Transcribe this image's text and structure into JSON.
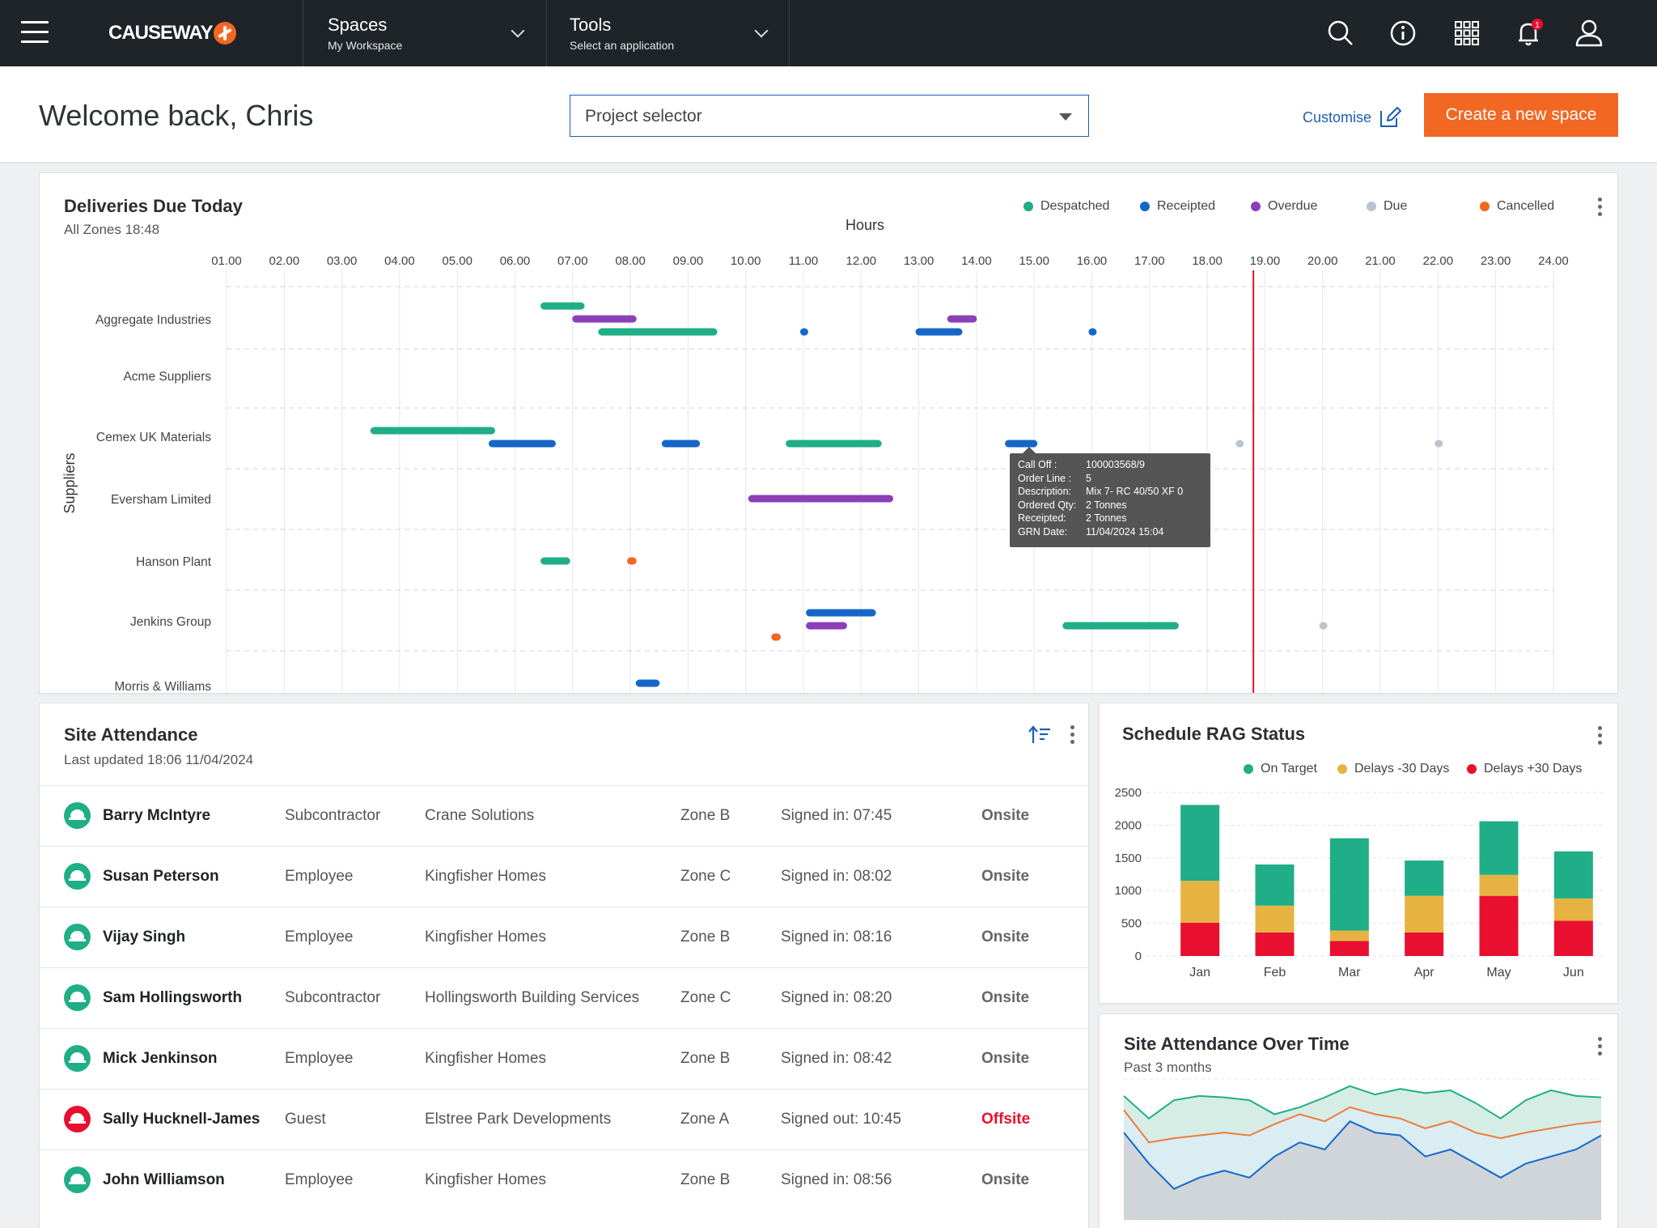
{
  "topbar": {
    "logo": "CAUSEWAY",
    "spaces": {
      "title": "Spaces",
      "subtitle": "My Workspace"
    },
    "tools": {
      "title": "Tools",
      "subtitle": "Select an application"
    },
    "notification_count": "1"
  },
  "header": {
    "welcome": "Welcome back, Chris",
    "project_selector": "Project selector",
    "customise": "Customise",
    "create_button": "Create a new space"
  },
  "deliveries": {
    "title": "Deliveries Due Today",
    "subtitle": "All Zones  18:48",
    "legend": [
      {
        "label": "Despatched",
        "color": "#1fae87"
      },
      {
        "label": "Receipted",
        "color": "#1467c8"
      },
      {
        "label": "Overdue",
        "color": "#8b3fb8"
      },
      {
        "label": "Due",
        "color": "#b9c4cf"
      },
      {
        "label": "Cancelled",
        "color": "#f26722"
      }
    ],
    "tooltip": [
      {
        "k": "Call Off :",
        "v": "100003568/9"
      },
      {
        "k": "Order Line :",
        "v": "5"
      },
      {
        "k": "Description:",
        "v": "Mix 7- RC 40/50 XF 0"
      },
      {
        "k": "Ordered Qty:",
        "v": "2 Tonnes"
      },
      {
        "k": "Receipted:",
        "v": "2 Tonnes"
      },
      {
        "k": "GRN Date:",
        "v": "11/04/2024  15:04"
      }
    ]
  },
  "chart_data": [
    {
      "type": "gantt",
      "xlabel": "Hours",
      "ylabel": "Suppliers",
      "x_ticks": [
        "01.00",
        "02.00",
        "03.00",
        "04.00",
        "05.00",
        "06.00",
        "07.00",
        "08.00",
        "09.00",
        "10.00",
        "11.00",
        "12.00",
        "13.00",
        "14.00",
        "15.00",
        "16.00",
        "17.00",
        "18.00",
        "19.00",
        "20.00",
        "21.00",
        "22.00",
        "23.00",
        "24.00"
      ],
      "current_time": 18.8,
      "rows": [
        "Aggregate Industries",
        "Acme Suppliers",
        "Cemex UK Materials",
        "Eversham Limited",
        "Hanson Plant",
        "Jenkins Group",
        "Morris & Williams"
      ],
      "bars": [
        {
          "row": 0,
          "sub": 0,
          "start": 6.45,
          "end": 7.2,
          "status": "Despatched"
        },
        {
          "row": 0,
          "sub": 1,
          "start": 7.0,
          "end": 8.1,
          "status": "Overdue"
        },
        {
          "row": 0,
          "sub": 2,
          "start": 7.45,
          "end": 9.5,
          "status": "Despatched"
        },
        {
          "row": 0,
          "sub": 2,
          "start": 10.95,
          "end": 11.05,
          "status": "Receipted"
        },
        {
          "row": 0,
          "sub": 2,
          "start": 12.95,
          "end": 13.75,
          "status": "Receipted"
        },
        {
          "row": 0,
          "sub": 1,
          "start": 13.5,
          "end": 14.0,
          "status": "Overdue"
        },
        {
          "row": 0,
          "sub": 2,
          "start": 15.95,
          "end": 16.05,
          "status": "Receipted"
        },
        {
          "row": 2,
          "sub": 0,
          "start": 3.5,
          "end": 5.65,
          "status": "Despatched"
        },
        {
          "row": 2,
          "sub": 1,
          "start": 5.55,
          "end": 6.7,
          "status": "Receipted"
        },
        {
          "row": 2,
          "sub": 1,
          "start": 8.55,
          "end": 9.2,
          "status": "Receipted"
        },
        {
          "row": 2,
          "sub": 1,
          "start": 10.7,
          "end": 12.35,
          "status": "Despatched"
        },
        {
          "row": 2,
          "sub": 1,
          "start": 14.5,
          "end": 15.05,
          "status": "Receipted"
        },
        {
          "row": 2,
          "sub": 1,
          "start": 18.5,
          "end": 18.6,
          "status": "Due"
        },
        {
          "row": 2,
          "sub": 1,
          "start": 21.95,
          "end": 22.05,
          "status": "Due"
        },
        {
          "row": 3,
          "sub": 1,
          "start": 10.05,
          "end": 12.55,
          "status": "Overdue"
        },
        {
          "row": 4,
          "sub": 1,
          "start": 6.45,
          "end": 6.95,
          "status": "Despatched"
        },
        {
          "row": 4,
          "sub": 1,
          "start": 7.95,
          "end": 8.1,
          "status": "Cancelled"
        },
        {
          "row": 5,
          "sub": 0,
          "start": 11.05,
          "end": 12.25,
          "status": "Receipted"
        },
        {
          "row": 5,
          "sub": 1,
          "start": 11.05,
          "end": 11.75,
          "status": "Overdue"
        },
        {
          "row": 5,
          "sub": 2,
          "start": 10.45,
          "end": 10.6,
          "status": "Cancelled"
        },
        {
          "row": 5,
          "sub": 1,
          "start": 15.5,
          "end": 17.5,
          "status": "Despatched"
        },
        {
          "row": 5,
          "sub": 1,
          "start": 19.95,
          "end": 20.05,
          "status": "Due"
        },
        {
          "row": 6,
          "sub": 0,
          "start": 8.1,
          "end": 8.5,
          "status": "Receipted"
        }
      ]
    },
    {
      "type": "bar",
      "stacked": true,
      "title": "Schedule RAG Status",
      "categories": [
        "Jan",
        "Feb",
        "Mar",
        "Apr",
        "May",
        "Jun"
      ],
      "ylim": [
        0,
        2500
      ],
      "y_ticks": [
        "0",
        "500",
        "1000",
        "1500",
        "2000",
        "2500"
      ],
      "legend_position": "top",
      "series": [
        {
          "name": "Delays +30 Days",
          "color": "#e8102e",
          "values": [
            510,
            360,
            230,
            360,
            920,
            540
          ]
        },
        {
          "name": "Delays -30 Days",
          "color": "#e6b342",
          "values": [
            640,
            410,
            160,
            560,
            320,
            340
          ]
        },
        {
          "name": "On Target",
          "color": "#1fae87",
          "values": [
            1160,
            630,
            1410,
            540,
            820,
            720
          ]
        }
      ]
    },
    {
      "type": "area",
      "title": "Site Attendance Over Time",
      "subtitle": "Past 3 months",
      "x": [
        0,
        1,
        2,
        3,
        4,
        5,
        6,
        7,
        8,
        9,
        10,
        11,
        12,
        13,
        14,
        15,
        16,
        17,
        18,
        19
      ],
      "series": [
        {
          "color": "#1fae87",
          "values": [
            88,
            72,
            85,
            88,
            87,
            85,
            75,
            80,
            87,
            95,
            89,
            93,
            90,
            92,
            83,
            72,
            85,
            92,
            88,
            87
          ]
        },
        {
          "color": "#f07a3a",
          "values": [
            78,
            55,
            58,
            60,
            62,
            60,
            68,
            75,
            70,
            80,
            75,
            72,
            65,
            70,
            62,
            58,
            62,
            65,
            68,
            70
          ]
        },
        {
          "color": "#1467c8",
          "values": [
            62,
            40,
            22,
            30,
            35,
            30,
            45,
            55,
            50,
            70,
            62,
            60,
            45,
            50,
            40,
            30,
            40,
            45,
            50,
            60
          ]
        },
        {
          "color": "#b0b5bb",
          "values": [
            0,
            0,
            0,
            0,
            0,
            0,
            0,
            0,
            0,
            0,
            0,
            0,
            0,
            0,
            0,
            0,
            0,
            0,
            0,
            0
          ]
        }
      ]
    }
  ],
  "attendance": {
    "title": "Site Attendance",
    "subtitle": "Last updated 18:06 11/04/2024",
    "rows": [
      {
        "name": "Barry McIntyre",
        "role": "Subcontractor",
        "company": "Crane Solutions",
        "zone": "Zone B",
        "signed": "Signed in: 07:45",
        "status": "Onsite",
        "hat": "#1fae87"
      },
      {
        "name": "Susan Peterson",
        "role": "Employee",
        "company": "Kingfisher Homes",
        "zone": "Zone C",
        "signed": "Signed in: 08:02",
        "status": "Onsite",
        "hat": "#1fae87"
      },
      {
        "name": "Vijay Singh",
        "role": "Employee",
        "company": "Kingfisher Homes",
        "zone": "Zone B",
        "signed": "Signed in: 08:16",
        "status": "Onsite",
        "hat": "#1fae87"
      },
      {
        "name": "Sam Hollingsworth",
        "role": "Subcontractor",
        "company": "Hollingsworth Building Services",
        "zone": "Zone C",
        "signed": "Signed in: 08:20",
        "status": "Onsite",
        "hat": "#1fae87"
      },
      {
        "name": "Mick Jenkinson",
        "role": "Employee",
        "company": "Kingfisher Homes",
        "zone": "Zone B",
        "signed": "Signed in: 08:42",
        "status": "Onsite",
        "hat": "#1fae87"
      },
      {
        "name": "Sally Hucknell-James",
        "role": "Guest",
        "company": "Elstree Park Developments",
        "zone": "Zone A",
        "signed": "Signed out: 10:45",
        "status": "Offsite",
        "hat": "#e8102e"
      },
      {
        "name": "John Williamson",
        "role": "Employee",
        "company": "Kingfisher Homes",
        "zone": "Zone B",
        "signed": "Signed in: 08:56",
        "status": "Onsite",
        "hat": "#1fae87"
      }
    ]
  },
  "rag": {
    "title": "Schedule RAG Status"
  },
  "attendance_time": {
    "title": "Site Attendance Over Time",
    "subtitle": "Past 3 months"
  }
}
